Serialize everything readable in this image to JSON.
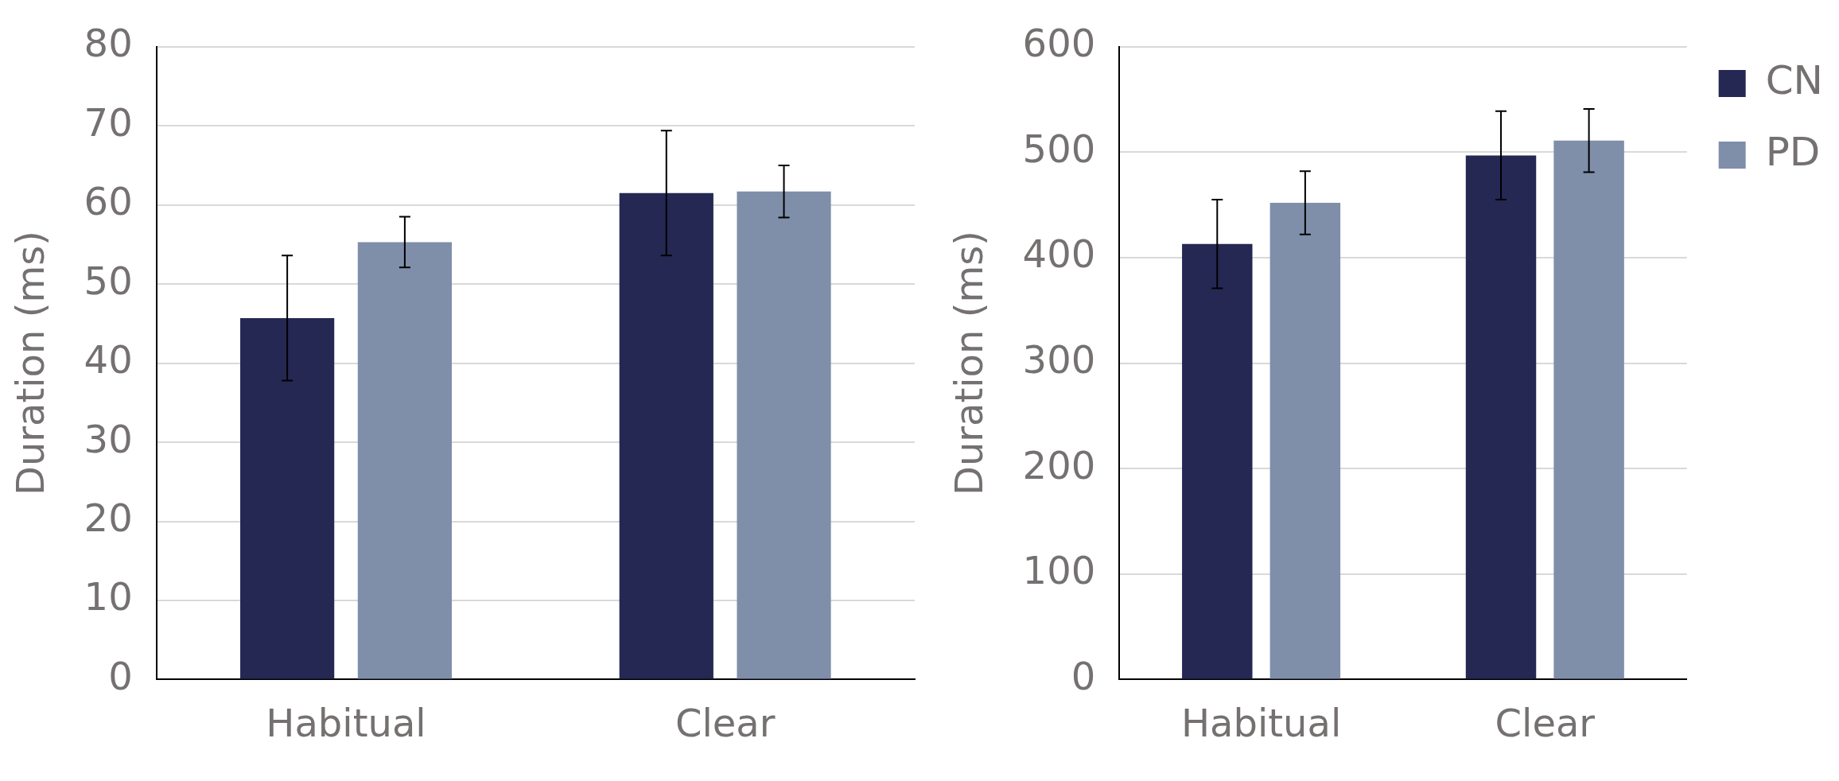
{
  "chart_data": [
    {
      "type": "bar",
      "categories": [
        "Habitual",
        "Clear"
      ],
      "ylabel": "Duration (ms)",
      "ylim": [
        0,
        80
      ],
      "yticks": [
        0,
        10,
        20,
        30,
        40,
        50,
        60,
        70,
        80
      ],
      "grid": "y",
      "legend": false,
      "series": [
        {
          "color": "#252853",
          "values": [
            45.7,
            61.5
          ],
          "errors": [
            7.9,
            7.9
          ]
        },
        {
          "color": "#7f8ea9",
          "values": [
            55.3,
            61.7
          ],
          "errors": [
            3.2,
            3.3
          ]
        }
      ]
    },
    {
      "type": "bar",
      "categories": [
        "Habitual",
        "Clear"
      ],
      "ylabel": "Duration (ms)",
      "ylim": [
        0,
        600
      ],
      "yticks": [
        0,
        100,
        200,
        300,
        400,
        500,
        600
      ],
      "grid": "y",
      "legend": "right",
      "series": [
        {
          "name": "CN",
          "color": "#252853",
          "values": [
            413,
            497
          ],
          "errors": [
            42,
            42
          ]
        },
        {
          "name": "PD",
          "color": "#7f8ea9",
          "values": [
            452,
            511
          ],
          "errors": [
            30,
            30
          ]
        }
      ]
    }
  ]
}
